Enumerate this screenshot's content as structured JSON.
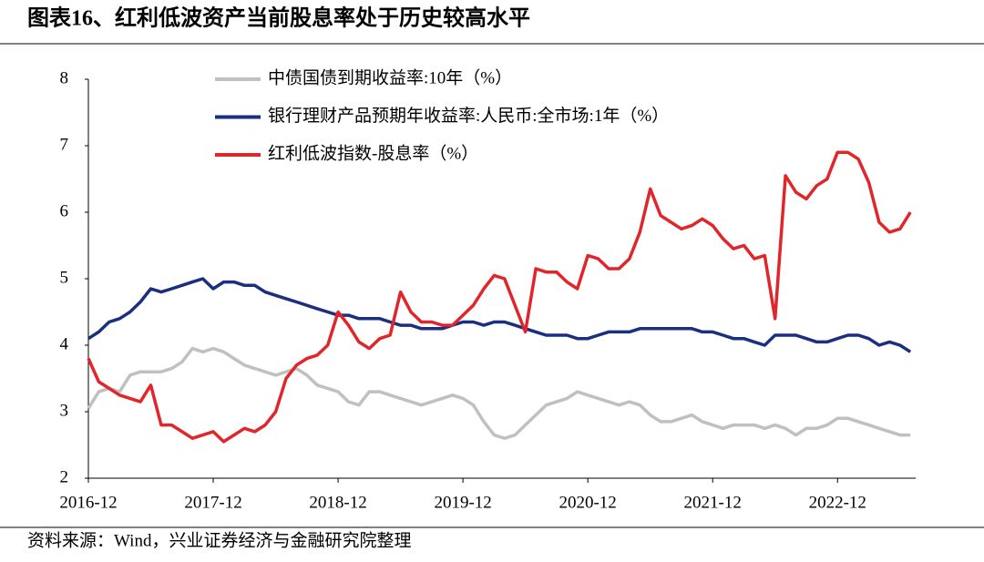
{
  "title": "图表16、红利低波资产当前股息率处于历史较高水平",
  "source": "资料来源：Wind，兴业证券经济与金融研究院整理",
  "chart_data": {
    "type": "line",
    "categories": [
      "2016-12",
      null,
      null,
      null,
      null,
      null,
      null,
      null,
      null,
      null,
      null,
      null,
      "2017-12",
      null,
      null,
      null,
      null,
      null,
      null,
      null,
      null,
      null,
      null,
      null,
      "2018-12",
      null,
      null,
      null,
      null,
      null,
      null,
      null,
      null,
      null,
      null,
      null,
      "2019-12",
      null,
      null,
      null,
      null,
      null,
      null,
      null,
      null,
      null,
      null,
      null,
      "2020-12",
      null,
      null,
      null,
      null,
      null,
      null,
      null,
      null,
      null,
      null,
      null,
      "2021-12",
      null,
      null,
      null,
      null,
      null,
      null,
      null,
      null,
      null,
      null,
      null,
      "2022-12",
      null,
      null,
      null,
      null,
      null,
      null,
      null
    ],
    "series": [
      {
        "name": "中债国债到期收益率:10年（%）",
        "color": "#c0c0c0",
        "values": [
          3.05,
          3.3,
          3.35,
          3.3,
          3.55,
          3.6,
          3.6,
          3.6,
          3.65,
          3.75,
          3.95,
          3.9,
          3.95,
          3.9,
          3.8,
          3.7,
          3.65,
          3.6,
          3.55,
          3.6,
          3.65,
          3.55,
          3.4,
          3.35,
          3.3,
          3.15,
          3.1,
          3.3,
          3.3,
          3.25,
          3.2,
          3.15,
          3.1,
          3.15,
          3.2,
          3.25,
          3.2,
          3.1,
          2.85,
          2.65,
          2.6,
          2.65,
          2.8,
          2.95,
          3.1,
          3.15,
          3.2,
          3.3,
          3.25,
          3.2,
          3.15,
          3.1,
          3.15,
          3.1,
          2.95,
          2.85,
          2.85,
          2.9,
          2.95,
          2.85,
          2.8,
          2.75,
          2.8,
          2.8,
          2.8,
          2.75,
          2.8,
          2.75,
          2.65,
          2.75,
          2.75,
          2.8,
          2.9,
          2.9,
          2.85,
          2.8,
          2.75,
          2.7,
          2.65,
          2.65
        ]
      },
      {
        "name": "银行理财产品预期年收益率:人民币:全市场:1年（%）",
        "color": "#1a2f80",
        "values": [
          4.1,
          4.2,
          4.35,
          4.4,
          4.5,
          4.65,
          4.85,
          4.8,
          4.85,
          4.9,
          4.95,
          5.0,
          4.85,
          4.95,
          4.95,
          4.9,
          4.9,
          4.8,
          4.75,
          4.7,
          4.65,
          4.6,
          4.55,
          4.5,
          4.45,
          4.45,
          4.4,
          4.4,
          4.4,
          4.35,
          4.3,
          4.3,
          4.25,
          4.25,
          4.25,
          4.3,
          4.35,
          4.35,
          4.3,
          4.35,
          4.35,
          4.3,
          4.25,
          4.2,
          4.15,
          4.15,
          4.15,
          4.1,
          4.1,
          4.15,
          4.2,
          4.2,
          4.2,
          4.25,
          4.25,
          4.25,
          4.25,
          4.25,
          4.25,
          4.2,
          4.2,
          4.15,
          4.1,
          4.1,
          4.05,
          4.0,
          4.15,
          4.15,
          4.15,
          4.1,
          4.05,
          4.05,
          4.1,
          4.15,
          4.15,
          4.1,
          4.0,
          4.05,
          4.0,
          3.9
        ]
      },
      {
        "name": "红利低波指数-股息率（%）",
        "color": "#e0262b",
        "values": [
          3.8,
          3.45,
          3.35,
          3.25,
          3.2,
          3.15,
          3.4,
          2.8,
          2.8,
          2.7,
          2.6,
          2.65,
          2.7,
          2.55,
          2.65,
          2.75,
          2.7,
          2.8,
          3.0,
          3.5,
          3.7,
          3.8,
          3.85,
          4.0,
          4.5,
          4.3,
          4.05,
          3.95,
          4.1,
          4.15,
          4.8,
          4.5,
          4.35,
          4.35,
          4.3,
          4.3,
          4.45,
          4.6,
          4.85,
          5.05,
          5.0,
          4.6,
          4.2,
          5.15,
          5.1,
          5.1,
          4.95,
          4.85,
          5.35,
          5.3,
          5.15,
          5.15,
          5.3,
          5.7,
          6.35,
          5.95,
          5.85,
          5.75,
          5.8,
          5.9,
          5.8,
          5.6,
          5.45,
          5.5,
          5.3,
          5.35,
          4.4,
          6.55,
          6.3,
          6.2,
          6.4,
          6.5,
          6.9,
          6.9,
          6.8,
          6.45,
          5.85,
          5.7,
          5.75,
          6.0
        ]
      }
    ],
    "ylim": [
      2,
      8
    ],
    "yticks": [
      2,
      3,
      4,
      5,
      6,
      7,
      8
    ]
  }
}
